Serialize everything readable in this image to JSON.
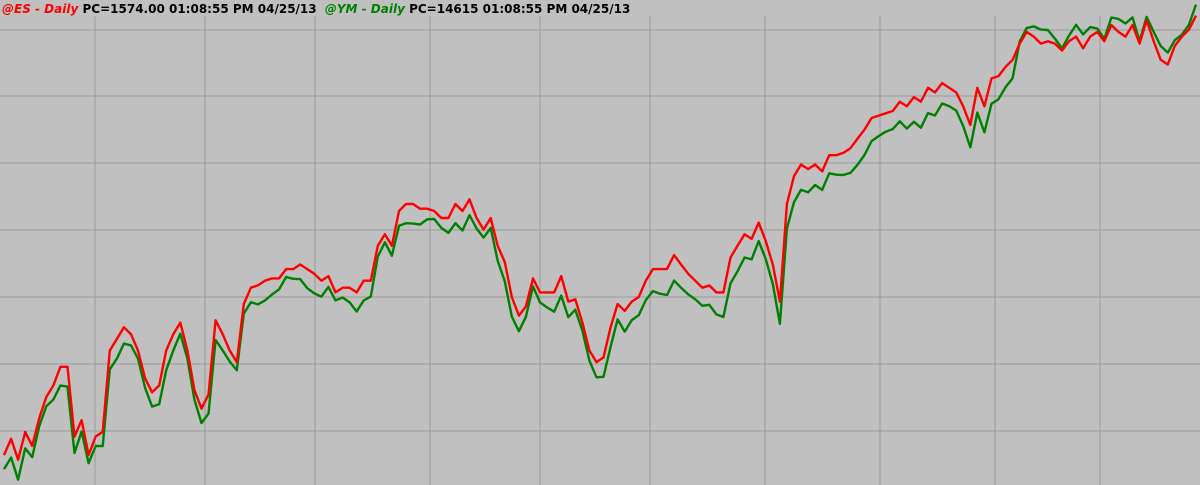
{
  "header": {
    "es": {
      "name": "@ES - Daily",
      "info": "PC=1574.00  01:08:55 PM  04/25/13"
    },
    "ym": {
      "name": "@YM - Daily",
      "info": "PC=14615  01:08:55 PM  04/25/13"
    }
  },
  "colors": {
    "background": "#c0c0c0",
    "grid": "#9a9a9a",
    "es": "#ff0000",
    "ym": "#008000",
    "text": "#000000"
  },
  "chart_data": {
    "type": "line",
    "grid": true,
    "x_grid_every": 11,
    "y_range": [
      1398,
      1598
    ],
    "y_grid_lines": 7,
    "series": [
      {
        "name": "@ES - Daily",
        "color": "#ff0000",
        "values": [
          1410,
          1417,
          1408,
          1420,
          1414,
          1426,
          1435,
          1440,
          1448,
          1448,
          1418,
          1425,
          1410,
          1418,
          1420,
          1455,
          1460,
          1465,
          1462,
          1455,
          1443,
          1437,
          1440,
          1455,
          1462,
          1467,
          1455,
          1438,
          1430,
          1436,
          1468,
          1462,
          1455,
          1450,
          1475,
          1482,
          1483,
          1485,
          1486,
          1486,
          1490,
          1490,
          1492,
          1490,
          1488,
          1485,
          1487,
          1480,
          1482,
          1482,
          1480,
          1485,
          1485,
          1500,
          1505,
          1500,
          1515,
          1518,
          1518,
          1516,
          1516,
          1515,
          1512,
          1512,
          1518,
          1515,
          1520,
          1512,
          1507,
          1512,
          1500,
          1493,
          1478,
          1470,
          1474,
          1486,
          1480,
          1480,
          1480,
          1487,
          1476,
          1477,
          1467,
          1455,
          1450,
          1452,
          1465,
          1475,
          1472,
          1476,
          1478,
          1485,
          1490,
          1490,
          1490,
          1496,
          1492,
          1488,
          1485,
          1482,
          1483,
          1480,
          1480,
          1495,
          1500,
          1505,
          1503,
          1510,
          1502,
          1492,
          1476,
          1518,
          1530,
          1535,
          1533,
          1535,
          1532,
          1539,
          1539,
          1540,
          1542,
          1546,
          1550,
          1555,
          1556,
          1557,
          1558,
          1562,
          1560,
          1564,
          1562,
          1568,
          1566,
          1570,
          1568,
          1566,
          1560,
          1552,
          1568,
          1560,
          1572,
          1573,
          1577,
          1580,
          1587,
          1592,
          1590,
          1587,
          1588,
          1587,
          1584,
          1588,
          1590,
          1585,
          1590,
          1592,
          1588,
          1595,
          1592,
          1590,
          1595,
          1587,
          1597,
          1588,
          1580,
          1578,
          1586,
          1590,
          1593,
          1599
        ],
        "xs": [
          0,
          1,
          2,
          3,
          4,
          5,
          6,
          7,
          8,
          9,
          10,
          11,
          12,
          13,
          14,
          15,
          16,
          17,
          18,
          19,
          20,
          21,
          22,
          23,
          24,
          25,
          26,
          27,
          28,
          29,
          30,
          31,
          32,
          33,
          34,
          35,
          36,
          37,
          38,
          39,
          40,
          41,
          42,
          43,
          44,
          45,
          46,
          47,
          48,
          49,
          50,
          51,
          52,
          53,
          54,
          55,
          56,
          57,
          58,
          59,
          60,
          61,
          62,
          63,
          64,
          65,
          66,
          67,
          68,
          69,
          70,
          71,
          72,
          73,
          74,
          75,
          76,
          77,
          78,
          79,
          80,
          81,
          82,
          83,
          84,
          85,
          86,
          87,
          88,
          89,
          90,
          91,
          92,
          93,
          94,
          95,
          96,
          97,
          98,
          99,
          100,
          101,
          102,
          103,
          104,
          105,
          106,
          107,
          108,
          109,
          110,
          111,
          112,
          113,
          114,
          115,
          116,
          117,
          118,
          119,
          120,
          121,
          122,
          123,
          124,
          125,
          126,
          127,
          128,
          129,
          130,
          131,
          132,
          133,
          134,
          135,
          136,
          137,
          138,
          139,
          140,
          141,
          142,
          143,
          144,
          145,
          146,
          147,
          148,
          149,
          150,
          151,
          152,
          153,
          154,
          155,
          156,
          157,
          158,
          159,
          160,
          161,
          162,
          163,
          164,
          165,
          166,
          167,
          168,
          169
        ]
      }
    ]
  }
}
